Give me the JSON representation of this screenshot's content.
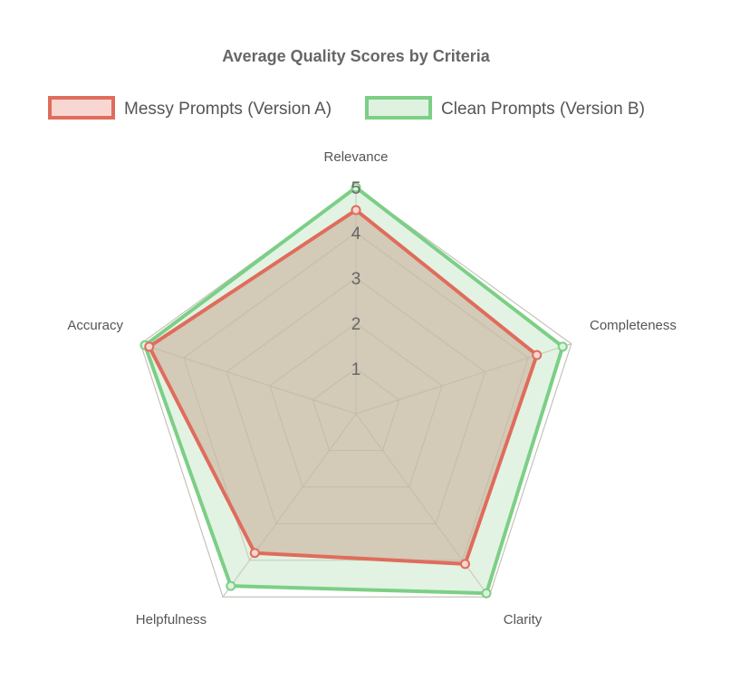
{
  "chart_data": {
    "type": "radar",
    "title": "Average Quality Scores by Criteria",
    "categories": [
      "Relevance",
      "Completeness",
      "Clarity",
      "Helpfulness",
      "Accuracy"
    ],
    "series": [
      {
        "name": "Messy Prompts (Version A)",
        "values": [
          4.5,
          4.2,
          4.1,
          3.8,
          4.8
        ],
        "border_color": "#e06c5c",
        "fill_color": "#f8d7d2"
      },
      {
        "name": "Clean Prompts (Version B)",
        "values": [
          5.0,
          4.8,
          4.9,
          4.7,
          4.9
        ],
        "border_color": "#7ccf86",
        "fill_color": "#dff2e0"
      }
    ],
    "r_ticks": [
      "1",
      "2",
      "3",
      "4",
      "5"
    ],
    "r_range": [
      0,
      5
    ],
    "legend_position": "top",
    "grid": true,
    "overlap_fill_color": "#d3cab7",
    "grid_color": "#cccccc"
  }
}
